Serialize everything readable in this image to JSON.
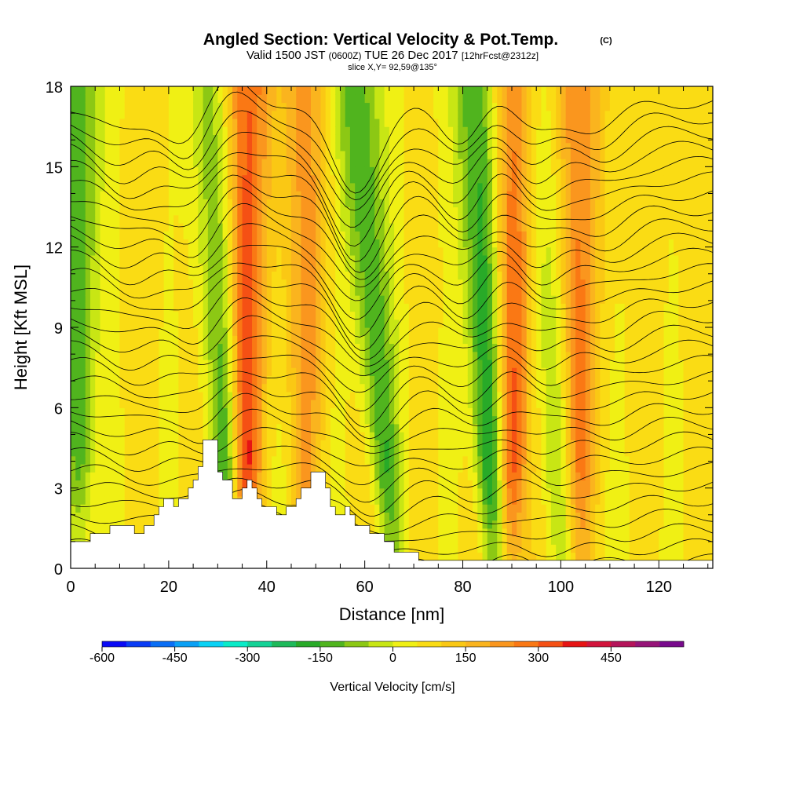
{
  "chart_data": {
    "type": "heatmap",
    "title": "Angled Section: Vertical Velocity & Pot.Temp.",
    "title_unit": "(C)",
    "subtitle_prefix": "Valid 1500 JST",
    "subtitle_z": "(0600Z)",
    "subtitle_date": "TUE 26 Dec 2017",
    "subtitle_fcst": "[12hrFcst@2312z]",
    "slice_label": "slice X,Y= 92,59@135°",
    "xlabel": "Distance [nm]",
    "ylabel": "Height [Kft MSL]",
    "xlim": [
      0,
      131
    ],
    "ylim": [
      0,
      18
    ],
    "xticks": [
      0,
      20,
      40,
      60,
      80,
      100,
      120
    ],
    "yticks": [
      0,
      3,
      6,
      9,
      12,
      15,
      18
    ],
    "colorbar": {
      "label": "Vertical Velocity [cm/s]",
      "min": -600,
      "max": 600,
      "step": 50,
      "ticks": [
        -600,
        -450,
        -300,
        -150,
        0,
        150,
        300,
        450
      ],
      "colors": [
        "#0a0af5",
        "#0a3cf5",
        "#0a6ef5",
        "#0aa0f5",
        "#0ad2f5",
        "#0aebc8",
        "#14d296",
        "#1eb95a",
        "#28aa28",
        "#50b41e",
        "#8cc814",
        "#c8e614",
        "#f0f014",
        "#fadc14",
        "#fac814",
        "#fab41e",
        "#fa961e",
        "#fa7814",
        "#f55014",
        "#e61414",
        "#d2143c",
        "#b4145a",
        "#961478",
        "#780a8c"
      ]
    },
    "velocity_features": [
      {
        "x_bottom": 32,
        "x_top": 30,
        "value": -200
      },
      {
        "x_bottom": 36,
        "x_top": 35,
        "value": 300
      },
      {
        "x_bottom": 66,
        "x_top": 58,
        "value": -200
      },
      {
        "x_bottom": 86,
        "x_top": 84,
        "value": -300
      },
      {
        "x_bottom": 90,
        "x_top": 89,
        "value": 300
      },
      {
        "x_bottom": 100,
        "x_top": 96,
        "value": -100
      },
      {
        "x_bottom": 2,
        "x_top": 1,
        "value": -200
      },
      {
        "x_bottom": 104,
        "x_top": 103,
        "value": 200
      },
      {
        "x_bottom": 48,
        "x_top": 48,
        "value": 150
      }
    ],
    "terrain": [
      [
        0,
        1.0
      ],
      [
        4,
        1.0
      ],
      [
        4,
        1.3
      ],
      [
        8,
        1.3
      ],
      [
        8,
        1.6
      ],
      [
        13,
        1.6
      ],
      [
        13,
        1.3
      ],
      [
        15,
        1.3
      ],
      [
        15,
        1.6
      ],
      [
        17,
        1.6
      ],
      [
        17,
        2.0
      ],
      [
        18,
        2.0
      ],
      [
        18,
        2.3
      ],
      [
        19,
        2.3
      ],
      [
        19,
        2.6
      ],
      [
        21,
        2.6
      ],
      [
        21,
        2.3
      ],
      [
        22,
        2.3
      ],
      [
        22,
        2.6
      ],
      [
        24,
        2.6
      ],
      [
        24,
        3.0
      ],
      [
        25,
        3.0
      ],
      [
        25,
        3.3
      ],
      [
        26,
        3.3
      ],
      [
        26,
        3.8
      ],
      [
        27,
        3.8
      ],
      [
        27,
        4.8
      ],
      [
        30,
        4.8
      ],
      [
        30,
        3.6
      ],
      [
        31,
        3.6
      ],
      [
        31,
        3.3
      ],
      [
        33,
        3.3
      ],
      [
        33,
        2.6
      ],
      [
        35,
        2.6
      ],
      [
        35,
        3.0
      ],
      [
        36,
        3.0
      ],
      [
        36,
        3.3
      ],
      [
        37,
        3.3
      ],
      [
        37,
        3.0
      ],
      [
        38,
        3.0
      ],
      [
        38,
        2.6
      ],
      [
        39,
        2.6
      ],
      [
        39,
        2.3
      ],
      [
        42,
        2.3
      ],
      [
        42,
        2.0
      ],
      [
        44,
        2.0
      ],
      [
        44,
        2.3
      ],
      [
        46,
        2.3
      ],
      [
        46,
        2.6
      ],
      [
        47,
        2.6
      ],
      [
        47,
        3.0
      ],
      [
        49,
        3.0
      ],
      [
        49,
        3.6
      ],
      [
        52,
        3.6
      ],
      [
        52,
        3.0
      ],
      [
        53,
        3.0
      ],
      [
        53,
        2.3
      ],
      [
        54,
        2.3
      ],
      [
        54,
        2.0
      ],
      [
        56,
        2.0
      ],
      [
        56,
        2.3
      ],
      [
        57,
        2.3
      ],
      [
        57,
        2.0
      ],
      [
        58,
        2.0
      ],
      [
        58,
        1.6
      ],
      [
        61,
        1.6
      ],
      [
        61,
        1.3
      ],
      [
        64,
        1.3
      ],
      [
        64,
        1.0
      ],
      [
        66,
        1.0
      ],
      [
        66,
        0.6
      ],
      [
        71,
        0.6
      ],
      [
        71,
        0.3
      ],
      [
        131,
        0.3
      ]
    ],
    "theta_contours": [
      3,
      4,
      5,
      6,
      7,
      8,
      9,
      10,
      11,
      12,
      13,
      14,
      15,
      16,
      17,
      18,
      19,
      20,
      21,
      22,
      23,
      24,
      25,
      26,
      27,
      28,
      29,
      30,
      31,
      32,
      33
    ]
  }
}
